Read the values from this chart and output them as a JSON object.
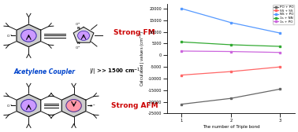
{
  "x": [
    1,
    2,
    3
  ],
  "series": [
    {
      "label": "PO + PO",
      "color": "#666666",
      "marker": "s",
      "values": [
        -21000,
        -18500,
        -14500
      ]
    },
    {
      "label": "SS + SS",
      "color": "#ff6666",
      "marker": "s",
      "values": [
        -8500,
        -7000,
        -5000
      ]
    },
    {
      "label": "NS + PO",
      "color": "#5599ff",
      "marker": "s",
      "values": [
        20000,
        14000,
        9500
      ]
    },
    {
      "label": "1s + NN",
      "color": "#33aa33",
      "marker": "s",
      "values": [
        5700,
        4500,
        3800
      ]
    },
    {
      "label": "1s + PO",
      "color": "#cc66dd",
      "marker": "s",
      "values": [
        1800,
        1600,
        1200
      ]
    }
  ],
  "xlabel": "The number of Triple bond",
  "ylabel": "Calculated J values (cm⁻¹)",
  "xlim": [
    0.7,
    3.3
  ],
  "ylim": [
    -25000,
    22000
  ],
  "yticks": [
    -25000,
    -20000,
    -15000,
    -10000,
    -5000,
    0,
    5000,
    10000,
    15000,
    20000
  ],
  "xticks": [
    1,
    2,
    3
  ],
  "bg_color": "#ffffff",
  "left_bg": "#f5f5f5",
  "text_FM": "Strong FM",
  "text_AFM": "Strong AFM",
  "text_coupler": "Acetylene Coupler",
  "text_J": "|J| >> 1500 cm⁻¹",
  "color_FM_text": "#cc0000",
  "color_AFM_text": "#cc0000",
  "color_coupler_text": "#0044cc",
  "radical_purple": "#cc99ff",
  "radical_pink": "#ff99aa",
  "hex_gray": "#bbbbbb",
  "hex_outline": "#222222"
}
